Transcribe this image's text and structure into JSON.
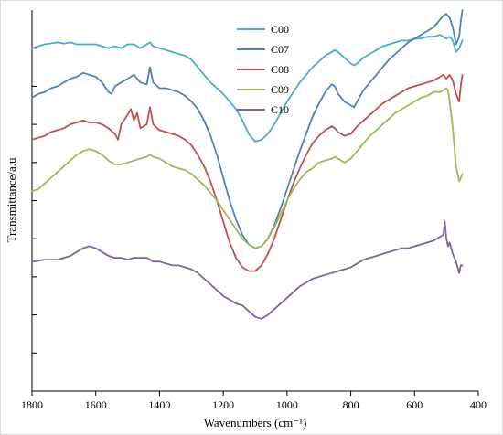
{
  "chart_data": {
    "type": "line",
    "title": "",
    "xlabel": "Wavenumbers (cm⁻¹)",
    "ylabel": "Transmittance/a.u",
    "xlim": [
      1800,
      400
    ],
    "x_ticks": [
      1800,
      1600,
      1400,
      1200,
      1000,
      800,
      600,
      400
    ],
    "x_tick_labels": [
      "1800",
      "1600",
      "1400",
      "1200",
      "1000",
      "800",
      "600",
      "400"
    ],
    "y_scale": "arbitrary units (stacked, offset)",
    "ylim": [
      0,
      10
    ],
    "y_ticks": [
      1,
      2,
      3,
      4,
      5,
      6,
      7,
      8,
      9
    ],
    "y_tick_labels": [],
    "grid": false,
    "legend_position": "top-center",
    "series": [
      {
        "name": "C00",
        "color": "#4bacc6",
        "x": [
          1800,
          1760,
          1720,
          1700,
          1680,
          1660,
          1640,
          1600,
          1580,
          1560,
          1540,
          1520,
          1500,
          1480,
          1460,
          1440,
          1430,
          1420,
          1400,
          1380,
          1360,
          1340,
          1320,
          1300,
          1280,
          1260,
          1240,
          1220,
          1200,
          1180,
          1160,
          1140,
          1120,
          1100,
          1080,
          1060,
          1040,
          1020,
          1000,
          980,
          960,
          940,
          920,
          900,
          880,
          860,
          850,
          840,
          820,
          800,
          790,
          780,
          760,
          740,
          720,
          700,
          680,
          660,
          640,
          620,
          600,
          580,
          560,
          540,
          520,
          510,
          500,
          490,
          480,
          470,
          460,
          450
        ],
        "y": [
          9.0,
          9.1,
          9.15,
          9.12,
          9.15,
          9.1,
          9.1,
          9.1,
          9.05,
          9.0,
          9.05,
          9.0,
          9.1,
          9.1,
          9.0,
          9.1,
          9.15,
          9.05,
          9.0,
          8.95,
          8.9,
          8.85,
          8.8,
          8.7,
          8.5,
          8.3,
          8.1,
          7.95,
          7.8,
          7.6,
          7.4,
          7.1,
          6.75,
          6.55,
          6.6,
          6.75,
          7.0,
          7.3,
          7.6,
          7.85,
          8.1,
          8.3,
          8.5,
          8.65,
          8.8,
          8.9,
          8.95,
          8.9,
          8.75,
          8.6,
          8.55,
          8.6,
          8.75,
          8.85,
          8.95,
          9.05,
          9.1,
          9.15,
          9.2,
          9.2,
          9.25,
          9.25,
          9.3,
          9.3,
          9.35,
          9.3,
          9.25,
          9.3,
          9.2,
          8.9,
          9.0,
          9.2
        ]
      },
      {
        "name": "C07",
        "color": "#4f81bd",
        "x": [
          1800,
          1780,
          1760,
          1740,
          1720,
          1700,
          1680,
          1660,
          1640,
          1620,
          1600,
          1580,
          1560,
          1550,
          1540,
          1520,
          1500,
          1480,
          1460,
          1440,
          1430,
          1420,
          1400,
          1380,
          1360,
          1340,
          1320,
          1300,
          1280,
          1260,
          1240,
          1220,
          1200,
          1180,
          1160,
          1140,
          1120,
          1100,
          1080,
          1060,
          1040,
          1020,
          1000,
          980,
          960,
          940,
          920,
          900,
          880,
          860,
          850,
          840,
          820,
          800,
          790,
          780,
          760,
          740,
          720,
          700,
          680,
          660,
          640,
          620,
          600,
          580,
          560,
          540,
          520,
          510,
          500,
          490,
          480,
          470,
          460,
          455,
          450
        ],
        "y": [
          7.7,
          7.8,
          7.85,
          7.95,
          8.0,
          8.1,
          8.2,
          8.25,
          8.35,
          8.3,
          8.25,
          8.1,
          7.85,
          7.8,
          8.0,
          8.1,
          8.2,
          8.3,
          8.1,
          8.05,
          8.5,
          8.1,
          7.95,
          7.95,
          7.9,
          7.85,
          7.75,
          7.6,
          7.4,
          7.1,
          6.7,
          6.2,
          5.6,
          5.0,
          4.5,
          4.1,
          3.85,
          3.75,
          3.8,
          4.0,
          4.35,
          4.8,
          5.3,
          5.8,
          6.3,
          6.75,
          7.2,
          7.55,
          7.85,
          8.05,
          8.0,
          7.8,
          7.6,
          7.5,
          7.45,
          7.6,
          7.9,
          8.1,
          8.3,
          8.5,
          8.7,
          8.85,
          9.0,
          9.15,
          9.25,
          9.35,
          9.45,
          9.55,
          9.75,
          9.85,
          9.9,
          9.8,
          9.55,
          9.1,
          9.3,
          9.7,
          10.0
        ]
      },
      {
        "name": "C08",
        "color": "#c0504d",
        "x": [
          1800,
          1780,
          1760,
          1740,
          1720,
          1700,
          1680,
          1660,
          1640,
          1620,
          1600,
          1580,
          1560,
          1540,
          1530,
          1520,
          1500,
          1490,
          1480,
          1470,
          1460,
          1440,
          1430,
          1420,
          1400,
          1380,
          1360,
          1340,
          1320,
          1300,
          1280,
          1260,
          1240,
          1220,
          1200,
          1180,
          1160,
          1140,
          1120,
          1100,
          1080,
          1060,
          1040,
          1020,
          1000,
          980,
          960,
          940,
          920,
          900,
          880,
          860,
          850,
          840,
          820,
          800,
          780,
          760,
          740,
          720,
          700,
          680,
          660,
          640,
          620,
          600,
          580,
          560,
          540,
          520,
          510,
          500,
          490,
          480,
          470,
          460,
          455,
          450
        ],
        "y": [
          6.6,
          6.65,
          6.7,
          6.8,
          6.85,
          6.9,
          7.0,
          7.05,
          7.1,
          7.05,
          7.05,
          7.0,
          6.9,
          6.75,
          6.6,
          7.0,
          7.25,
          7.4,
          7.1,
          7.3,
          6.9,
          7.0,
          7.45,
          7.0,
          6.85,
          6.8,
          6.75,
          6.7,
          6.6,
          6.45,
          6.2,
          5.9,
          5.5,
          5.0,
          4.45,
          3.9,
          3.5,
          3.25,
          3.15,
          3.15,
          3.3,
          3.6,
          4.0,
          4.5,
          5.0,
          5.45,
          5.85,
          6.2,
          6.5,
          6.7,
          6.85,
          6.95,
          6.9,
          6.8,
          6.7,
          6.75,
          6.95,
          7.1,
          7.25,
          7.4,
          7.55,
          7.65,
          7.75,
          7.85,
          7.95,
          8.0,
          8.05,
          8.1,
          8.15,
          8.25,
          8.3,
          8.2,
          8.3,
          8.15,
          7.8,
          7.6,
          8.0,
          8.3
        ]
      },
      {
        "name": "C09",
        "color": "#9bbb59",
        "x": [
          1800,
          1780,
          1760,
          1740,
          1720,
          1700,
          1680,
          1660,
          1640,
          1620,
          1600,
          1580,
          1560,
          1540,
          1520,
          1500,
          1480,
          1460,
          1440,
          1430,
          1420,
          1400,
          1380,
          1360,
          1340,
          1320,
          1300,
          1280,
          1260,
          1240,
          1220,
          1200,
          1180,
          1160,
          1140,
          1120,
          1100,
          1080,
          1060,
          1040,
          1020,
          1000,
          980,
          960,
          940,
          920,
          900,
          880,
          860,
          850,
          840,
          820,
          800,
          780,
          760,
          740,
          720,
          700,
          680,
          660,
          640,
          620,
          600,
          580,
          560,
          540,
          520,
          510,
          500,
          495,
          490,
          480,
          470,
          460,
          455,
          450
        ],
        "y": [
          5.25,
          5.3,
          5.45,
          5.6,
          5.75,
          5.9,
          6.05,
          6.2,
          6.3,
          6.35,
          6.3,
          6.2,
          6.05,
          5.95,
          5.95,
          6.0,
          6.05,
          6.1,
          6.15,
          6.2,
          6.15,
          6.1,
          6.0,
          5.9,
          5.85,
          5.8,
          5.7,
          5.55,
          5.4,
          5.2,
          5.0,
          4.75,
          4.5,
          4.25,
          4.0,
          3.85,
          3.75,
          3.8,
          4.0,
          4.3,
          4.65,
          5.0,
          5.3,
          5.55,
          5.75,
          5.85,
          6.0,
          6.05,
          6.1,
          6.15,
          6.1,
          6.0,
          6.1,
          6.3,
          6.5,
          6.7,
          6.85,
          7.0,
          7.15,
          7.3,
          7.4,
          7.5,
          7.6,
          7.7,
          7.75,
          7.85,
          7.85,
          7.9,
          7.95,
          7.9,
          7.6,
          6.9,
          5.9,
          5.5,
          5.6,
          5.7
        ]
      },
      {
        "name": "C10",
        "color": "#8064a2",
        "x": [
          1800,
          1780,
          1760,
          1740,
          1720,
          1700,
          1680,
          1660,
          1640,
          1620,
          1600,
          1580,
          1560,
          1540,
          1520,
          1500,
          1480,
          1460,
          1440,
          1430,
          1420,
          1400,
          1380,
          1360,
          1340,
          1320,
          1300,
          1280,
          1260,
          1240,
          1220,
          1200,
          1180,
          1160,
          1140,
          1120,
          1100,
          1080,
          1060,
          1040,
          1020,
          1000,
          980,
          960,
          940,
          920,
          900,
          880,
          860,
          840,
          820,
          800,
          780,
          760,
          740,
          720,
          700,
          680,
          660,
          640,
          620,
          600,
          580,
          560,
          540,
          520,
          510,
          505,
          500,
          495,
          490,
          480,
          470,
          460,
          455,
          450
        ],
        "y": [
          3.4,
          3.42,
          3.45,
          3.45,
          3.45,
          3.5,
          3.55,
          3.65,
          3.75,
          3.8,
          3.75,
          3.65,
          3.55,
          3.5,
          3.5,
          3.45,
          3.5,
          3.5,
          3.5,
          3.45,
          3.4,
          3.4,
          3.35,
          3.3,
          3.3,
          3.25,
          3.2,
          3.1,
          2.95,
          2.8,
          2.65,
          2.5,
          2.4,
          2.3,
          2.25,
          2.1,
          1.95,
          1.9,
          2.0,
          2.15,
          2.3,
          2.45,
          2.6,
          2.75,
          2.85,
          2.95,
          3.0,
          3.05,
          3.1,
          3.15,
          3.2,
          3.25,
          3.35,
          3.45,
          3.5,
          3.55,
          3.6,
          3.65,
          3.7,
          3.75,
          3.75,
          3.8,
          3.85,
          3.9,
          3.95,
          4.05,
          4.1,
          4.45,
          4.0,
          3.8,
          3.9,
          3.6,
          3.4,
          3.1,
          3.3,
          3.3
        ]
      }
    ]
  }
}
